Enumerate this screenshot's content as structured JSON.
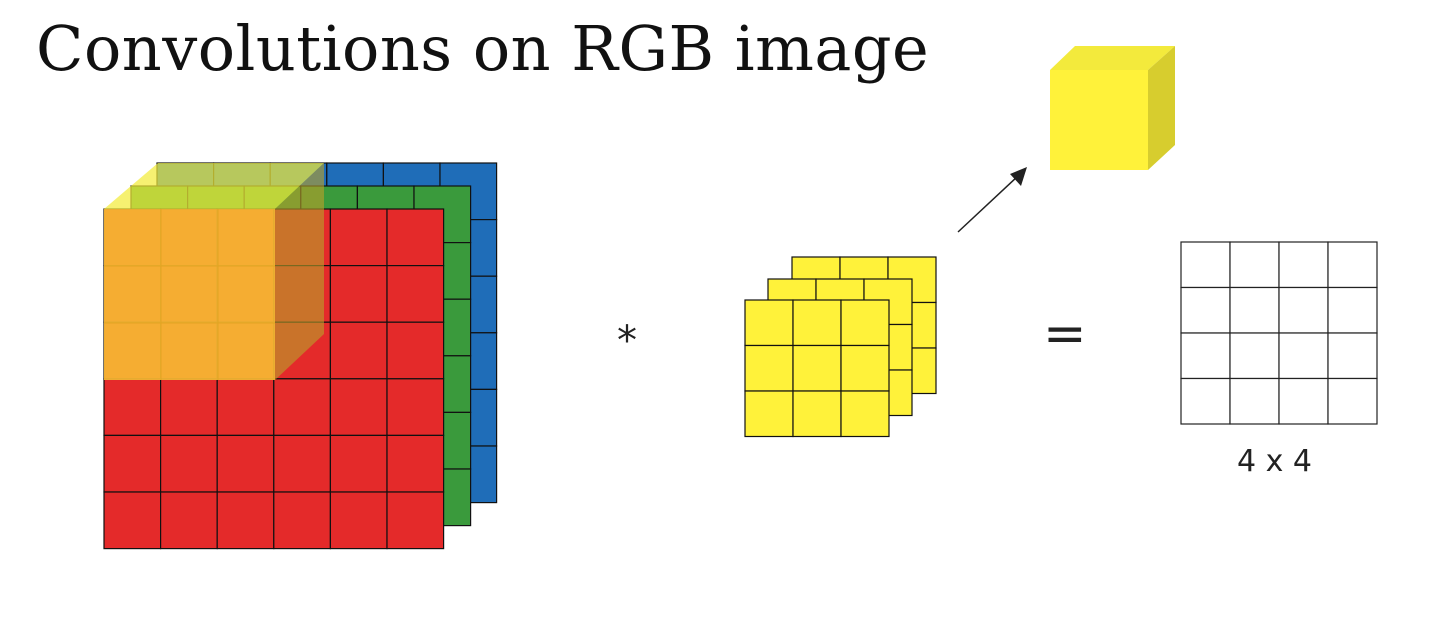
{
  "title": "Convolutions on RGB image",
  "operators": {
    "convolve": "*",
    "equals": "="
  },
  "output": {
    "size_label": "4 x 4",
    "rows": 4,
    "cols": 4
  },
  "input_volume": {
    "rows": 6,
    "cols": 6,
    "channels": [
      "red",
      "green",
      "blue"
    ]
  },
  "filter": {
    "rows": 3,
    "cols": 3,
    "channels": 3
  },
  "colors": {
    "red": "#e42a2a",
    "green": "#3a9a3c",
    "blue": "#1f6db8",
    "yellow": "#fff23a",
    "orange_overlay": "#f6b833",
    "grid_line": "#111111"
  }
}
